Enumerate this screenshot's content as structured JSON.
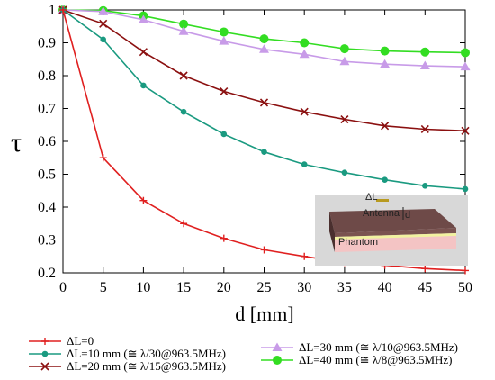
{
  "chart_data": {
    "type": "line",
    "xlabel": "d [mm]",
    "ylabel": "τ",
    "xlim": [
      0,
      50
    ],
    "ylim": [
      0.2,
      1.0
    ],
    "x_ticks": [
      0,
      5,
      10,
      15,
      20,
      25,
      30,
      35,
      40,
      45,
      50
    ],
    "y_ticks": [
      0.2,
      0.3,
      0.4,
      0.5,
      0.6,
      0.7,
      0.8,
      0.9,
      1.0
    ],
    "x": [
      0,
      5,
      10,
      15,
      20,
      25,
      30,
      35,
      40,
      45,
      50
    ],
    "grid": false,
    "legend_placement": "bottom",
    "series": [
      {
        "name": "ΔL=0",
        "color": "#e02020",
        "marker": "plus",
        "values": [
          1.0,
          0.55,
          0.42,
          0.35,
          0.305,
          0.27,
          0.25,
          0.232,
          0.223,
          0.213,
          0.207
        ]
      },
      {
        "name": "ΔL=10 mm (≅ λ/30@963.5MHz)",
        "color": "#1a9a80",
        "marker": "star",
        "values": [
          1.0,
          0.91,
          0.77,
          0.69,
          0.622,
          0.568,
          0.53,
          0.505,
          0.483,
          0.465,
          0.455
        ]
      },
      {
        "name": "ΔL=20 mm (≅ λ/15@963.5MHz)",
        "color": "#8b1010",
        "marker": "cross",
        "values": [
          1.0,
          0.958,
          0.872,
          0.8,
          0.752,
          0.718,
          0.69,
          0.667,
          0.647,
          0.637,
          0.632
        ]
      },
      {
        "name": "ΔL=30 mm (≅ λ/10@963.5MHz)",
        "color": "#c89be8",
        "marker": "triangle",
        "values": [
          1.0,
          0.995,
          0.97,
          0.935,
          0.905,
          0.88,
          0.865,
          0.843,
          0.835,
          0.83,
          0.827
        ]
      },
      {
        "name": "ΔL=40 mm (≅ λ/8@963.5MHz)",
        "color": "#33dd22",
        "marker": "circle",
        "values": [
          1.0,
          0.998,
          0.982,
          0.957,
          0.933,
          0.912,
          0.9,
          0.882,
          0.875,
          0.872,
          0.87
        ]
      }
    ],
    "inset": {
      "labels": {
        "delta": "ΔL",
        "antenna": "Antenna",
        "d": "d",
        "phantom": "Phantom"
      }
    }
  }
}
